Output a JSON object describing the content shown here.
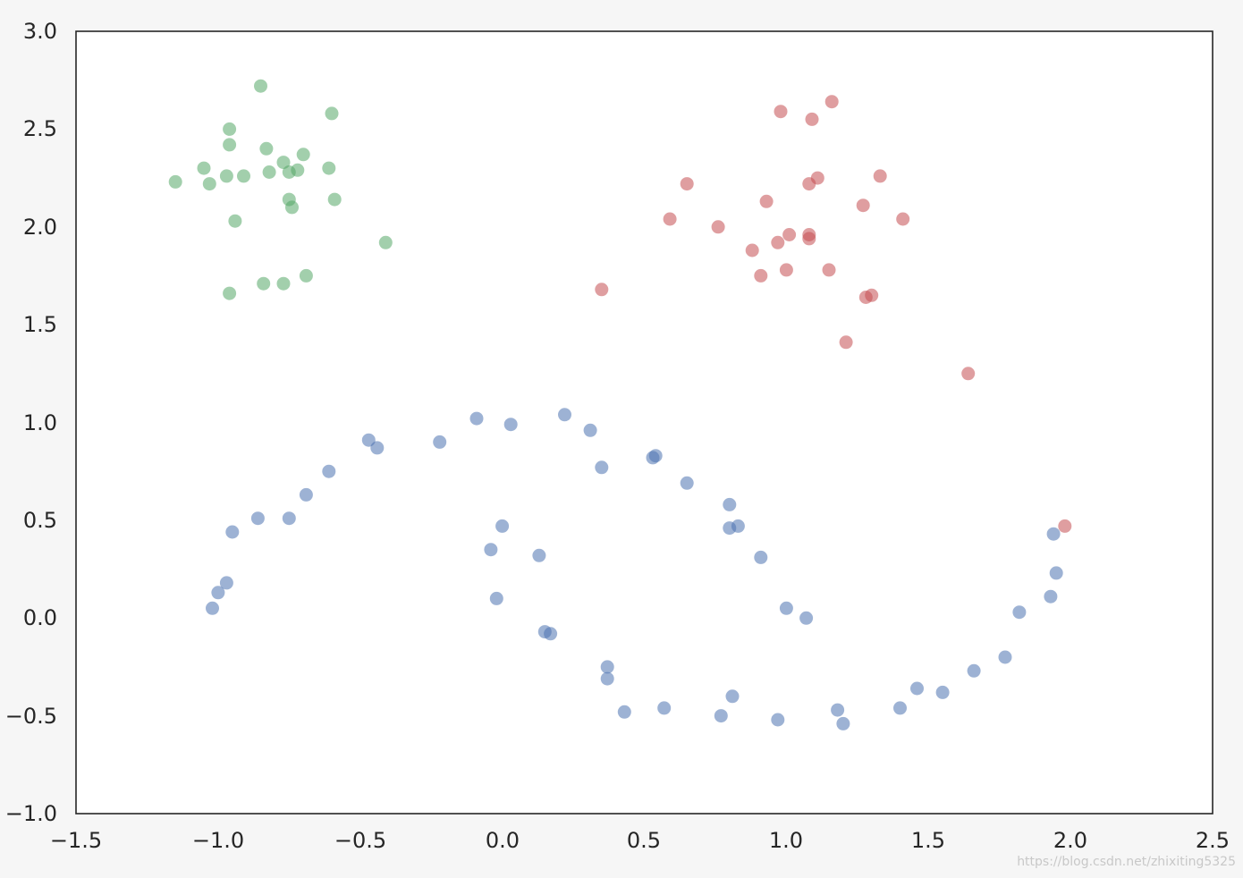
{
  "chart_data": {
    "type": "scatter",
    "title": "",
    "xlabel": "",
    "ylabel": "",
    "xlim": [
      -1.5,
      2.5
    ],
    "ylim": [
      -1.0,
      3.0
    ],
    "xticks": [
      "−1.5",
      "−1.0",
      "−0.5",
      "0.0",
      "0.5",
      "1.0",
      "1.5",
      "2.0",
      "2.5"
    ],
    "yticks": [
      "−1.0",
      "−0.5",
      "0.0",
      "0.5",
      "1.0",
      "1.5",
      "2.0",
      "2.5",
      "3.0"
    ],
    "xtick_values": [
      -1.5,
      -1.0,
      -0.5,
      0.0,
      0.5,
      1.0,
      1.5,
      2.0,
      2.5
    ],
    "ytick_values": [
      -1.0,
      -0.5,
      0.0,
      0.5,
      1.0,
      1.5,
      2.0,
      2.5,
      3.0
    ],
    "grid": false,
    "legend": "none",
    "series": [
      {
        "color": "#4c72b0",
        "points": [
          [
            -1.02,
            0.05
          ],
          [
            -1.0,
            0.13
          ],
          [
            -0.97,
            0.18
          ],
          [
            -0.95,
            0.44
          ],
          [
            -0.86,
            0.51
          ],
          [
            -0.75,
            0.51
          ],
          [
            -0.69,
            0.63
          ],
          [
            -0.61,
            0.75
          ],
          [
            -0.47,
            0.91
          ],
          [
            -0.44,
            0.87
          ],
          [
            -0.22,
            0.9
          ],
          [
            -0.09,
            1.02
          ],
          [
            0.03,
            0.99
          ],
          [
            0.22,
            1.04
          ],
          [
            0.31,
            0.96
          ],
          [
            0.35,
            0.77
          ],
          [
            0.53,
            0.82
          ],
          [
            0.54,
            0.83
          ],
          [
            0.65,
            0.69
          ],
          [
            0.8,
            0.58
          ],
          [
            0.8,
            0.46
          ],
          [
            0.83,
            0.47
          ],
          [
            0.91,
            0.31
          ],
          [
            1.0,
            0.05
          ],
          [
            1.07,
            0.0
          ],
          [
            0.0,
            0.47
          ],
          [
            -0.04,
            0.35
          ],
          [
            -0.02,
            0.1
          ],
          [
            0.13,
            0.32
          ],
          [
            0.15,
            -0.07
          ],
          [
            0.17,
            -0.08
          ],
          [
            0.37,
            -0.25
          ],
          [
            0.37,
            -0.31
          ],
          [
            0.43,
            -0.48
          ],
          [
            0.57,
            -0.46
          ],
          [
            0.77,
            -0.5
          ],
          [
            0.81,
            -0.4
          ],
          [
            0.97,
            -0.52
          ],
          [
            1.18,
            -0.47
          ],
          [
            1.2,
            -0.54
          ],
          [
            1.4,
            -0.46
          ],
          [
            1.46,
            -0.36
          ],
          [
            1.55,
            -0.38
          ],
          [
            1.66,
            -0.27
          ],
          [
            1.77,
            -0.2
          ],
          [
            1.82,
            0.03
          ],
          [
            1.93,
            0.11
          ],
          [
            1.95,
            0.23
          ],
          [
            1.94,
            0.43
          ]
        ]
      },
      {
        "color": "#55a868",
        "points": [
          [
            -1.15,
            2.23
          ],
          [
            -1.05,
            2.3
          ],
          [
            -1.03,
            2.22
          ],
          [
            -0.97,
            2.26
          ],
          [
            -0.96,
            2.5
          ],
          [
            -0.96,
            2.42
          ],
          [
            -0.94,
            2.03
          ],
          [
            -0.91,
            2.26
          ],
          [
            -0.85,
            2.72
          ],
          [
            -0.83,
            2.4
          ],
          [
            -0.82,
            2.28
          ],
          [
            -0.77,
            2.33
          ],
          [
            -0.75,
            2.28
          ],
          [
            -0.72,
            2.29
          ],
          [
            -0.7,
            2.37
          ],
          [
            -0.75,
            2.14
          ],
          [
            -0.74,
            2.1
          ],
          [
            -0.6,
            2.58
          ],
          [
            -0.61,
            2.3
          ],
          [
            -0.59,
            2.14
          ],
          [
            -0.41,
            1.92
          ],
          [
            -0.96,
            1.66
          ],
          [
            -0.84,
            1.71
          ],
          [
            -0.77,
            1.71
          ],
          [
            -0.69,
            1.75
          ]
        ]
      },
      {
        "color": "#c44e52",
        "points": [
          [
            0.98,
            2.59
          ],
          [
            1.09,
            2.55
          ],
          [
            1.16,
            2.64
          ],
          [
            0.59,
            2.04
          ],
          [
            0.65,
            2.22
          ],
          [
            0.76,
            2.0
          ],
          [
            0.88,
            1.88
          ],
          [
            0.91,
            1.75
          ],
          [
            0.93,
            2.13
          ],
          [
            0.97,
            1.92
          ],
          [
            1.0,
            1.78
          ],
          [
            1.01,
            1.96
          ],
          [
            1.08,
            1.96
          ],
          [
            1.08,
            1.94
          ],
          [
            1.08,
            2.22
          ],
          [
            1.11,
            2.25
          ],
          [
            1.15,
            1.78
          ],
          [
            1.27,
            2.11
          ],
          [
            1.28,
            1.64
          ],
          [
            1.3,
            1.65
          ],
          [
            1.33,
            2.26
          ],
          [
            1.41,
            2.04
          ],
          [
            1.21,
            1.41
          ],
          [
            0.35,
            1.68
          ],
          [
            1.64,
            1.25
          ],
          [
            1.98,
            0.47
          ]
        ]
      }
    ]
  },
  "watermark": "https://blog.csdn.net/zhixiting5325"
}
